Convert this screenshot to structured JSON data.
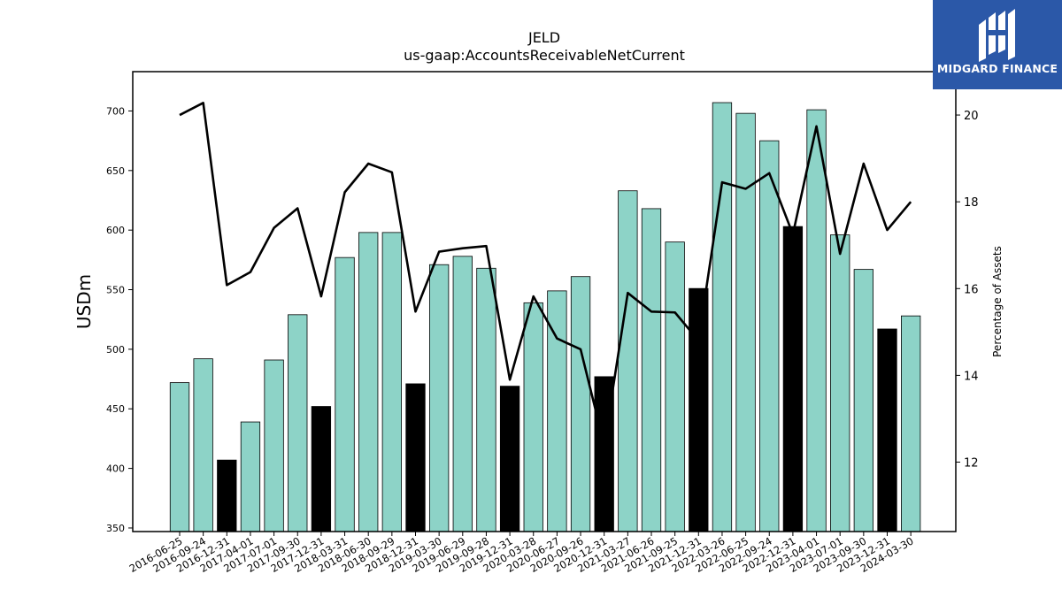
{
  "brand": {
    "name": "MIDGARD FINANCE",
    "logo_icon": "midgard-m-logo-icon",
    "bg_color": "#2b58a8"
  },
  "chart_data": {
    "type": "bar",
    "title": "JELD",
    "subtitle": "us-gaap:AccountsReceivableNetCurrent",
    "ylabel": "USDm",
    "ylabel_right": "Percentage of Assets",
    "ylim": [
      347,
      733
    ],
    "y_ticks": [
      350,
      400,
      450,
      500,
      550,
      600,
      650,
      700
    ],
    "ylim_right": [
      10.4,
      21.0
    ],
    "y_ticks_right": [
      12,
      14,
      16,
      18,
      20
    ],
    "bar_color": "#8dd3c7",
    "highlight_color": "#000000",
    "line_color": "#000000",
    "grid": false,
    "categories": [
      "2016-06-25",
      "2016-09-24",
      "2016-12-31",
      "2017-04-01",
      "2017-07-01",
      "2017-09-30",
      "2017-12-31",
      "2018-03-31",
      "2018-06-30",
      "2018-09-29",
      "2018-12-31",
      "2019-03-30",
      "2019-06-29",
      "2019-09-28",
      "2019-12-31",
      "2020-03-28",
      "2020-06-27",
      "2020-09-26",
      "2020-12-31",
      "2021-03-27",
      "2021-06-26",
      "2021-09-25",
      "2021-12-31",
      "2022-03-26",
      "2022-06-25",
      "2022-09-24",
      "2022-12-31",
      "2023-04-01",
      "2023-07-01",
      "2023-09-30",
      "2023-12-31",
      "2024-03-30"
    ],
    "series": [
      {
        "type": "bar",
        "axis": "left",
        "values": [
          472,
          492,
          407,
          439,
          491,
          529,
          452,
          577,
          598,
          598,
          471,
          571,
          578,
          568,
          469,
          539,
          549,
          561,
          477,
          633,
          618,
          590,
          551,
          707,
          698,
          675,
          603,
          701,
          596,
          567,
          517,
          528
        ],
        "highlight": [
          false,
          false,
          true,
          false,
          false,
          false,
          true,
          false,
          false,
          false,
          true,
          false,
          false,
          false,
          true,
          false,
          false,
          false,
          true,
          false,
          false,
          false,
          true,
          false,
          false,
          false,
          true,
          false,
          false,
          false,
          true,
          false
        ]
      },
      {
        "type": "line",
        "axis": "right",
        "values": [
          20.0,
          20.28,
          16.08,
          16.38,
          17.4,
          17.85,
          15.82,
          18.22,
          18.88,
          18.68,
          15.47,
          16.85,
          16.93,
          16.98,
          13.9,
          15.82,
          14.85,
          14.6,
          12.4,
          15.9,
          15.47,
          15.45,
          14.8,
          18.45,
          18.3,
          18.66,
          17.25,
          19.74,
          16.8,
          18.88,
          17.35,
          18.0
        ]
      }
    ]
  }
}
